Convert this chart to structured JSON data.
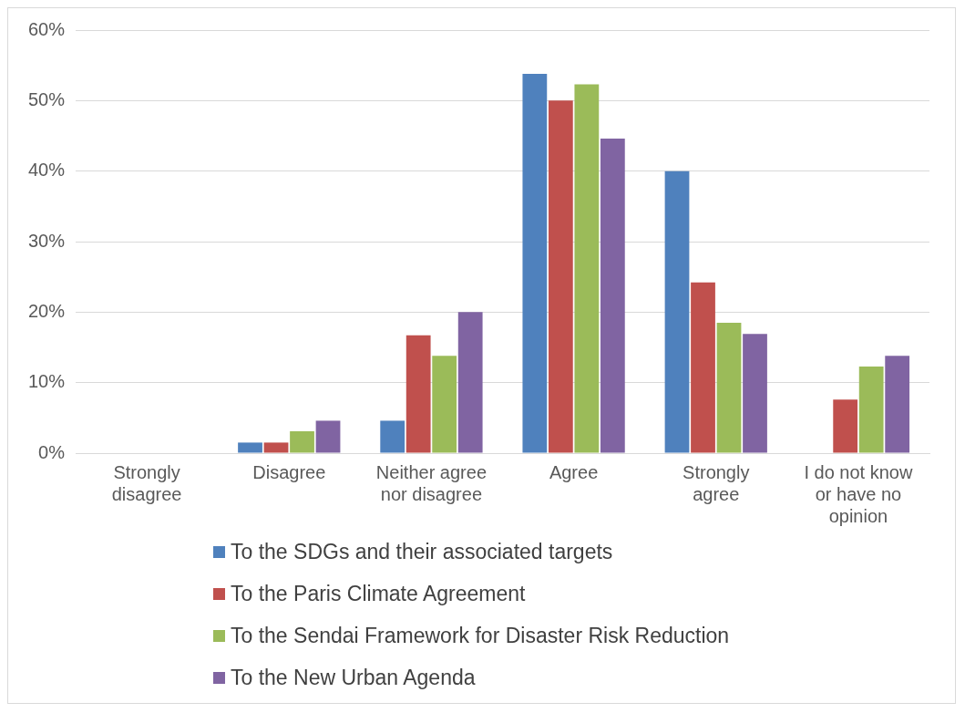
{
  "chart_data": {
    "type": "bar",
    "categories": [
      "Strongly disagree",
      "Disagree",
      "Neither agree nor disagree",
      "Agree",
      "Strongly agree",
      "I do not know or have no opinion"
    ],
    "series": [
      {
        "name": "To the SDGs and their associated targets",
        "color": "#4f81bd",
        "values": [
          0,
          1.5,
          4.6,
          53.8,
          40.0,
          0
        ]
      },
      {
        "name": "To the Paris Climate Agreement",
        "color": "#c0504d",
        "values": [
          0,
          1.5,
          16.7,
          50.0,
          24.2,
          7.6
        ]
      },
      {
        "name": "To the Sendai Framework for Disaster Risk Reduction",
        "color": "#9bbb59",
        "values": [
          0,
          3.1,
          13.8,
          52.3,
          18.5,
          12.3
        ]
      },
      {
        "name": "To the New Urban Agenda",
        "color": "#8064a2",
        "values": [
          0,
          4.6,
          20.0,
          44.6,
          16.9,
          13.8
        ]
      }
    ],
    "ylim": [
      0,
      60
    ],
    "yticks": [
      {
        "value": 0,
        "label": "0%"
      },
      {
        "value": 10,
        "label": "10%"
      },
      {
        "value": 20,
        "label": "20%"
      },
      {
        "value": 30,
        "label": "30%"
      },
      {
        "value": 40,
        "label": "40%"
      },
      {
        "value": 50,
        "label": "50%"
      },
      {
        "value": 60,
        "label": "60%"
      }
    ],
    "grid": "y",
    "legend": "bottom"
  }
}
